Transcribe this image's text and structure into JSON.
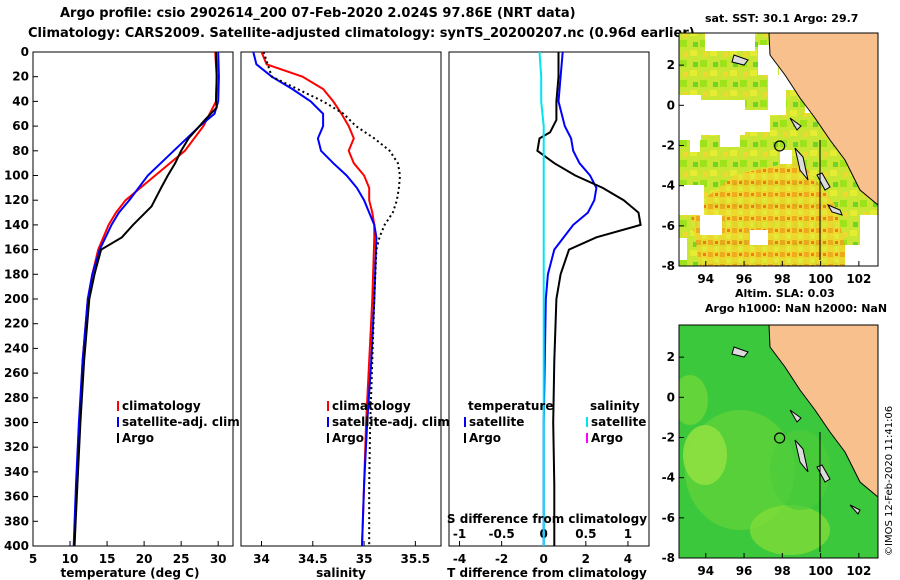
{
  "header": {
    "line1": "Argo profile: csio 2902614_200 07-Feb-2020 2.024S 97.86E (NRT data)",
    "line2": "Climatology: CARS2009. Satellite-adjusted climatology: synTS_20200207.nc (0.96d earlier)"
  },
  "stamp": "©IMOS 12-Feb-2020 11:41:06",
  "colors": {
    "climatology": "#ff0000",
    "satellite": "#0000ff",
    "argo": "#000000",
    "sal_sat": "#00e5ee",
    "sal_argo": "#ff00ff",
    "land": "#f8c08c"
  },
  "chart_data": [
    {
      "type": "line",
      "id": "temperature",
      "xlabel": "temperature (deg C)",
      "ylabel": "",
      "xlim": [
        5,
        32
      ],
      "ylim": [
        400,
        0
      ],
      "xticks": [
        "5",
        "10",
        "15",
        "20",
        "25",
        "30"
      ],
      "yticks": [
        "0",
        "20",
        "40",
        "60",
        "80",
        "100",
        "120",
        "140",
        "160",
        "180",
        "200",
        "220",
        "240",
        "260",
        "280",
        "300",
        "320",
        "340",
        "360",
        "380",
        "400"
      ],
      "series": [
        {
          "name": "climatology",
          "color": "#ff0000",
          "depth": [
            0,
            20,
            40,
            60,
            80,
            100,
            110,
            120,
            130,
            140,
            160,
            180,
            200,
            250,
            300,
            350,
            400
          ],
          "values": [
            29.6,
            29.8,
            29.7,
            28,
            25.5,
            21.5,
            19.5,
            17.5,
            16.2,
            15.2,
            13.8,
            13,
            12.4,
            11.7,
            11.3,
            10.9,
            10.6
          ]
        },
        {
          "name": "satellite-adj. clim.",
          "color": "#0000ff",
          "depth": [
            0,
            20,
            40,
            50,
            60,
            80,
            100,
            120,
            130,
            140,
            160,
            180,
            200,
            250,
            300,
            350,
            400
          ],
          "values": [
            30,
            30.1,
            30,
            29.5,
            27.5,
            24,
            20.5,
            18,
            16.6,
            15.6,
            14,
            13,
            12.4,
            11.7,
            11.2,
            10.8,
            10.5
          ]
        },
        {
          "name": "Argo",
          "color": "#000000",
          "depth": [
            0,
            20,
            40,
            45,
            55,
            70,
            80,
            90,
            100,
            110,
            125,
            140,
            150,
            160,
            180,
            200,
            250,
            300,
            350,
            400
          ],
          "values": [
            29.7,
            29.8,
            29.7,
            29.8,
            28.2,
            26,
            25,
            24.2,
            23.2,
            22.3,
            21,
            18.5,
            17,
            14.2,
            13.3,
            12.6,
            11.9,
            11.4,
            11,
            10.6
          ]
        }
      ],
      "legend": [
        {
          "label": "climatology",
          "color": "#ff0000"
        },
        {
          "label": "satellite-adj. clim.",
          "color": "#0000ff"
        },
        {
          "label": "Argo",
          "color": "#000000"
        }
      ]
    },
    {
      "type": "line",
      "id": "salinity",
      "xlabel": "salinity",
      "xlim": [
        33.8,
        35.75
      ],
      "ylim": [
        400,
        0
      ],
      "xticks": [
        "34",
        "34.5",
        "35",
        "35.5"
      ],
      "series": [
        {
          "name": "climatology",
          "color": "#ff0000",
          "depth": [
            0,
            10,
            20,
            30,
            40,
            50,
            60,
            70,
            80,
            90,
            100,
            110,
            120,
            130,
            140,
            150,
            200,
            250,
            300,
            350,
            400
          ],
          "values": [
            34.0,
            34.05,
            34.4,
            34.6,
            34.7,
            34.78,
            34.85,
            34.9,
            34.85,
            34.9,
            35.0,
            35.05,
            35.05,
            35.08,
            35.1,
            35.1,
            35.08,
            35.05,
            35.02,
            35.0,
            34.98
          ]
        },
        {
          "name": "satellite-adj. clim.",
          "color": "#0000ff",
          "depth": [
            0,
            10,
            20,
            30,
            40,
            50,
            60,
            70,
            80,
            90,
            100,
            110,
            120,
            130,
            140,
            150,
            200,
            250,
            300,
            350,
            400
          ],
          "values": [
            33.92,
            33.95,
            34.1,
            34.3,
            34.48,
            34.6,
            34.6,
            34.55,
            34.58,
            34.7,
            34.83,
            34.93,
            35.0,
            35.05,
            35.1,
            35.12,
            35.1,
            35.07,
            35.03,
            35.0,
            34.98
          ]
        },
        {
          "name": "Argo",
          "color": "#000000",
          "dashed": true,
          "depth": [
            0,
            20,
            30,
            40,
            50,
            60,
            70,
            80,
            90,
            100,
            110,
            120,
            130,
            140,
            150,
            160,
            200,
            250,
            300,
            350,
            400
          ],
          "values": [
            34.02,
            34.1,
            34.35,
            34.6,
            34.8,
            34.92,
            35.1,
            35.25,
            35.33,
            35.35,
            35.34,
            35.32,
            35.28,
            35.2,
            35.15,
            35.12,
            35.1,
            35.08,
            35.06,
            35.05,
            35.05
          ]
        }
      ],
      "legend": [
        {
          "label": "climatology",
          "color": "#ff0000"
        },
        {
          "label": "satellite-adj. clim.",
          "color": "#0000ff"
        },
        {
          "label": "Argo",
          "color": "#000000"
        }
      ]
    },
    {
      "type": "line",
      "id": "difference",
      "xlabel": "T difference from climatology",
      "xlabel_top": "S difference from climatology",
      "xlim": [
        -4.5,
        5
      ],
      "ylim": [
        400,
        0
      ],
      "xticks": [
        "-4",
        "-2",
        "0",
        "2",
        "4"
      ],
      "xticks_top": [
        "-1",
        "-0.5",
        "0",
        "0.5",
        "1"
      ],
      "series": [
        {
          "name": "temperature satellite",
          "color": "#0000ff",
          "depth": [
            0,
            20,
            40,
            60,
            70,
            80,
            90,
            100,
            110,
            120,
            130,
            140,
            160,
            180,
            200,
            250,
            300,
            350,
            400
          ],
          "values": [
            0.9,
            0.8,
            0.7,
            1.0,
            1.3,
            1.4,
            1.7,
            2.2,
            2.5,
            2.4,
            2.1,
            1.4,
            0.5,
            0.2,
            0.1,
            0.05,
            0.0,
            0.0,
            0.0
          ]
        },
        {
          "name": "temperature Argo",
          "color": "#000000",
          "depth": [
            0,
            20,
            40,
            55,
            65,
            70,
            80,
            90,
            100,
            110,
            120,
            130,
            140,
            150,
            160,
            180,
            200,
            250,
            300,
            350,
            400
          ],
          "values": [
            0.7,
            0.7,
            0.6,
            0.6,
            0.3,
            -0.2,
            -0.3,
            0.5,
            1.5,
            2.8,
            3.8,
            4.5,
            4.6,
            2.5,
            1.2,
            0.8,
            0.6,
            0.5,
            0.45,
            0.5,
            0.5
          ]
        },
        {
          "name": "salinity satellite",
          "color": "#00e5ee",
          "scale": "top",
          "depth": [
            0,
            20,
            40,
            60,
            80,
            100,
            120,
            140,
            160,
            180,
            200,
            250,
            300,
            350,
            400
          ],
          "values": [
            -0.05,
            -0.03,
            -0.03,
            0.0,
            0.0,
            0.0,
            0.0,
            0.0,
            0.0,
            0.0,
            0.0,
            0.0,
            0.0,
            0.0,
            0.0
          ]
        }
      ],
      "legend": [
        {
          "label": "temperature",
          "color": ""
        },
        {
          "label": "satellite",
          "color": "#0000ff"
        },
        {
          "label": "Argo",
          "color": "#000000"
        },
        {
          "label": "salinity",
          "color": ""
        },
        {
          "label": "satellite",
          "color": "#00e5ee"
        },
        {
          "label": "Argo",
          "color": "#ff00ff"
        }
      ]
    },
    {
      "type": "heatmap",
      "id": "sst_map",
      "title": "sat. SST: 30.1  Argo: 29.7",
      "xticks": [
        "94",
        "96",
        "98",
        "100",
        "102"
      ],
      "yticks": [
        "2",
        "0",
        "-2",
        "-4",
        "-6",
        "-8"
      ],
      "xlim": [
        92.6,
        103
      ],
      "ylim": [
        -8,
        3.6
      ],
      "marker": {
        "lon": 97.86,
        "lat": -2.024
      }
    },
    {
      "type": "heatmap",
      "id": "sla_map",
      "title": "Altim. SLA: 0.03",
      "subtitle": "Argo h1000: NaN h2000: NaN",
      "xticks": [
        "94",
        "96",
        "98",
        "100",
        "102"
      ],
      "yticks": [
        "2",
        "0",
        "-2",
        "-4",
        "-6",
        "-8"
      ],
      "xlim": [
        92.6,
        103
      ],
      "ylim": [
        -8,
        3.6
      ],
      "marker": {
        "lon": 97.86,
        "lat": -2.024
      }
    }
  ]
}
